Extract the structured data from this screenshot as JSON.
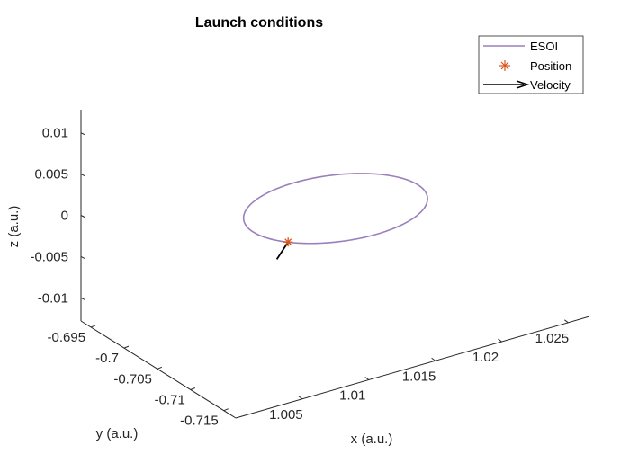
{
  "chart_data": {
    "type": "line",
    "title": "Launch conditions",
    "xlabel": "x (a.u.)",
    "ylabel": "y (a.u.)",
    "zlabel": "z (a.u.)",
    "x_ticks": [
      "1.005",
      "1.01",
      "1.015",
      "1.02",
      "1.025"
    ],
    "y_ticks": [
      "-0.695",
      "-0.7",
      "-0.705",
      "-0.71",
      "-0.715"
    ],
    "z_ticks": [
      "0.01",
      "0.005",
      "0",
      "-0.005",
      "-0.01"
    ],
    "xlim": [
      1.0,
      1.0266
    ],
    "ylim": [
      -0.7168,
      -0.6935
    ],
    "zlim": [
      -0.0128,
      0.0128
    ],
    "grid": false,
    "legend_placement": "top-right",
    "series": [
      {
        "name": "ESOI",
        "kind": "circle",
        "center": {
          "x": 1.0137,
          "y": -0.7044,
          "z": 0
        },
        "radius": 0.00619,
        "color": "#9b7fbd"
      },
      {
        "name": "Position",
        "kind": "point",
        "x": 1.00849,
        "y": -0.70769,
        "z": 0,
        "color": "#d9541a"
      },
      {
        "name": "Velocity",
        "kind": "vector",
        "origin": {
          "x": 1.00849,
          "y": -0.70769,
          "z": 0
        },
        "direction": {
          "x": -0.0003,
          "y": 0.0011,
          "z": -0.0025
        },
        "color": "#000000"
      }
    ]
  }
}
